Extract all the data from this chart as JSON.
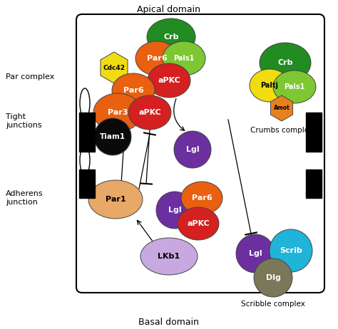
{
  "title_top": "Apical domain",
  "title_bottom": "Basal domain",
  "label_par_complex": "Par complex",
  "label_tight_junctions": "Tight\njunctions",
  "label_adherens_junction": "Adherens\njunction",
  "label_crumbs_complex": "Crumbs complex",
  "label_scribble_complex": "Scribble complex",
  "colors": {
    "orange_dark": "#E86010",
    "red": "#D42020",
    "green_dark": "#228B22",
    "green_light": "#7DC832",
    "yellow": "#F0DC10",
    "purple_dark": "#6B2FA0",
    "purple_light": "#C8A8E0",
    "cyan": "#20B4D8",
    "brown_gray": "#7A7858",
    "black": "#0A0A0A",
    "peach": "#E8A868",
    "white": "#FFFFFF",
    "orange_amot": "#E88020"
  }
}
